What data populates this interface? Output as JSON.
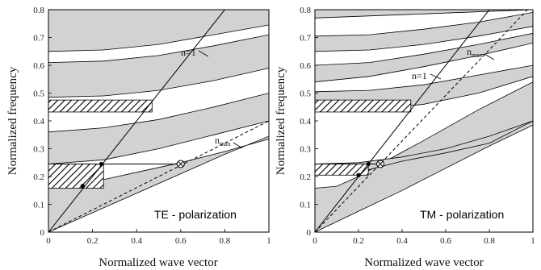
{
  "chart_data": [
    {
      "type": "line",
      "panel_id": "te",
      "xlabel": "Normalized wave vector",
      "ylabel": "Normalized frequency",
      "xlim": [
        0,
        1
      ],
      "ylim": [
        0,
        0.8
      ],
      "xticks": [
        "0",
        "0.2",
        "0.4",
        "0.6",
        "0.8",
        "1"
      ],
      "yticks": [
        "0",
        "0.1",
        "0.2",
        "0.3",
        "0.4",
        "0.5",
        "0.6",
        "0.7",
        "0.8"
      ],
      "polarization_label": "TE - polarization",
      "annotations": {
        "light_line": "n=1",
        "nmax_base": "n",
        "nmax_sub": "max"
      },
      "light_line": {
        "slope": 1.0
      },
      "nmax_line": {
        "slope": 0.4
      },
      "bands": [
        {
          "lower": [
            [
              0,
              0.0
            ],
            [
              0.2,
              0.07
            ],
            [
              0.4,
              0.14
            ],
            [
              0.6,
              0.21
            ],
            [
              0.8,
              0.28
            ],
            [
              1,
              0.345
            ]
          ],
          "upper": [
            [
              0,
              0.158
            ],
            [
              0.2,
              0.18
            ],
            [
              0.4,
              0.215
            ],
            [
              0.6,
              0.25
            ],
            [
              0.8,
              0.29
            ],
            [
              1,
              0.335
            ]
          ]
        },
        {
          "lower": [
            [
              0,
              0.245
            ],
            [
              0.25,
              0.26
            ],
            [
              0.5,
              0.3
            ],
            [
              0.75,
              0.35
            ],
            [
              1,
              0.4
            ]
          ],
          "upper": [
            [
              0,
              0.36
            ],
            [
              0.25,
              0.375
            ],
            [
              0.5,
              0.405
            ],
            [
              0.75,
              0.45
            ],
            [
              1,
              0.5
            ]
          ]
        },
        {
          "lower": [
            [
              0,
              0.485
            ],
            [
              0.25,
              0.49
            ],
            [
              0.5,
              0.51
            ],
            [
              0.75,
              0.545
            ],
            [
              1,
              0.59
            ]
          ],
          "upper": [
            [
              0,
              0.61
            ],
            [
              0.25,
              0.615
            ],
            [
              0.5,
              0.635
            ],
            [
              0.75,
              0.67
            ],
            [
              1,
              0.71
            ]
          ]
        },
        {
          "lower": [
            [
              0,
              0.65
            ],
            [
              0.25,
              0.655
            ],
            [
              0.5,
              0.675
            ],
            [
              0.75,
              0.71
            ],
            [
              1,
              0.745
            ]
          ],
          "upper": [
            [
              0,
              0.8
            ],
            [
              1,
              0.8
            ]
          ]
        }
      ],
      "hatched_regions": [
        {
          "y": [
            0.158,
            0.245
          ],
          "x_end": 0.25
        },
        {
          "y": [
            0.432,
            0.475
          ],
          "x_end": 0.47
        }
      ],
      "filled_points": [
        [
          0.155,
          0.166
        ],
        [
          0.24,
          0.245
        ]
      ],
      "crossed_point": [
        0.6,
        0.245
      ],
      "horizontal_segment": {
        "y": 0.245,
        "x": [
          0,
          0.6
        ]
      }
    },
    {
      "type": "line",
      "panel_id": "tm",
      "xlabel": "Normalized wave vector",
      "ylabel": "Normalized frequency",
      "xlim": [
        0,
        1
      ],
      "ylim": [
        0,
        0.8
      ],
      "xticks": [
        "0",
        "0.2",
        "0.4",
        "0.6",
        "0.8",
        "1"
      ],
      "yticks": [
        "0",
        "0.1",
        "0.2",
        "0.3",
        "0.4",
        "0.5",
        "0.6",
        "0.7",
        "0.8"
      ],
      "polarization_label": "TM - polarization",
      "annotations": {
        "light_line": "n=1",
        "nmax_base": "n",
        "nmax_sub": "max"
      },
      "light_line": {
        "slope": 1.0
      },
      "nmax_line": {
        "slope": 0.82
      },
      "bands": [
        {
          "lower": [
            [
              0,
              0.0
            ],
            [
              0.2,
              0.075
            ],
            [
              0.4,
              0.15
            ],
            [
              0.6,
              0.23
            ],
            [
              0.8,
              0.31
            ],
            [
              1,
              0.385
            ]
          ],
          "upper": [
            [
              0,
              0.158
            ],
            [
              0.1,
              0.165
            ],
            [
              0.2,
              0.2
            ],
            [
              0.3,
              0.245
            ],
            [
              0.5,
              0.33
            ],
            [
              0.75,
              0.44
            ],
            [
              1,
              0.54
            ]
          ]
        },
        {
          "lower": [
            [
              0,
              0.21
            ],
            [
              0.2,
              0.215
            ],
            [
              0.4,
              0.255
            ],
            [
              0.6,
              0.285
            ],
            [
              0.8,
              0.32
            ],
            [
              1,
              0.4
            ]
          ],
          "upper": [
            [
              0,
              0.245
            ],
            [
              0.2,
              0.25
            ],
            [
              0.4,
              0.27
            ],
            [
              0.6,
              0.3
            ],
            [
              0.8,
              0.345
            ],
            [
              1,
              0.4
            ]
          ]
        },
        {
          "lower": [
            [
              0,
              0.435
            ],
            [
              0.25,
              0.44
            ],
            [
              0.5,
              0.46
            ],
            [
              0.75,
              0.5
            ],
            [
              1,
              0.56
            ]
          ],
          "upper": [
            [
              0,
              0.505
            ],
            [
              0.25,
              0.51
            ],
            [
              0.5,
              0.53
            ],
            [
              0.75,
              0.565
            ],
            [
              1,
              0.6
            ]
          ]
        },
        {
          "lower": [
            [
              0,
              0.54
            ],
            [
              0.25,
              0.56
            ],
            [
              0.5,
              0.595
            ],
            [
              0.75,
              0.635
            ],
            [
              1,
              0.68
            ]
          ],
          "upper": [
            [
              0,
              0.6
            ],
            [
              0.25,
              0.61
            ],
            [
              0.5,
              0.64
            ],
            [
              0.75,
              0.675
            ],
            [
              1,
              0.715
            ]
          ]
        },
        {
          "lower": [
            [
              0,
              0.65
            ],
            [
              0.25,
              0.655
            ],
            [
              0.5,
              0.675
            ],
            [
              0.75,
              0.705
            ],
            [
              1,
              0.74
            ]
          ],
          "upper": [
            [
              0,
              0.705
            ],
            [
              0.25,
              0.71
            ],
            [
              0.5,
              0.73
            ],
            [
              0.75,
              0.755
            ],
            [
              1,
              0.79
            ]
          ]
        },
        {
          "lower": [
            [
              0,
              0.77
            ],
            [
              0.5,
              0.785
            ],
            [
              1,
              0.8
            ]
          ],
          "upper": [
            [
              0,
              0.8
            ],
            [
              1,
              0.8
            ]
          ]
        }
      ],
      "hatched_regions": [
        {
          "y": [
            0.205,
            0.245
          ],
          "x_end": 0.245
        },
        {
          "y": [
            0.432,
            0.475
          ],
          "x_end": 0.44
        }
      ],
      "filled_points": [
        [
          0.2,
          0.205
        ],
        [
          0.245,
          0.245
        ]
      ],
      "crossed_point": [
        0.3,
        0.245
      ],
      "horizontal_segment": {
        "y": 0.245,
        "x": [
          0,
          0.3
        ]
      }
    }
  ]
}
